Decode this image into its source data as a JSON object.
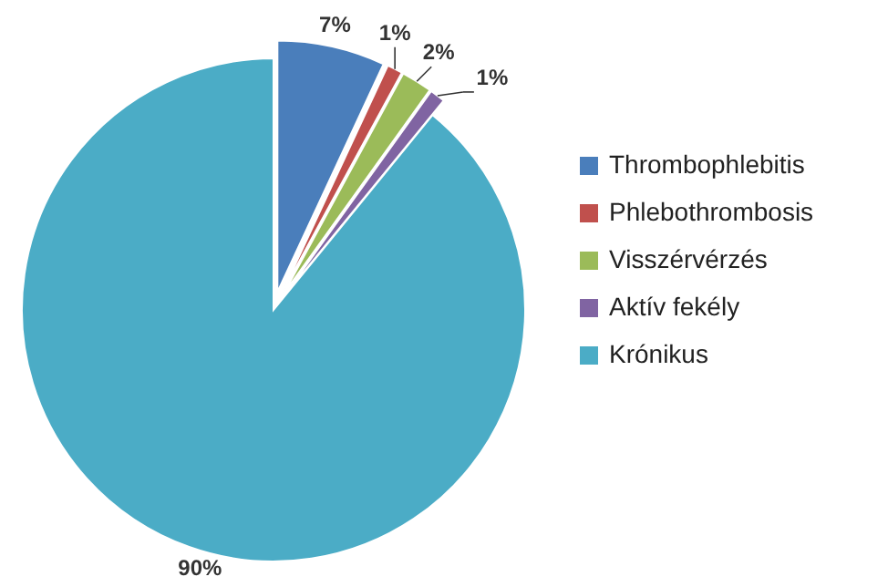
{
  "chart_data": {
    "type": "pie",
    "categories": [
      "Thrombophlebitis",
      "Phlebothrombosis",
      "Visszérvérzés",
      "Aktív fekély",
      "Krónikus"
    ],
    "values": [
      7,
      1,
      2,
      1,
      90
    ],
    "colors": [
      "#4a7ebb",
      "#c0504d",
      "#9bbb59",
      "#8064a2",
      "#4bacc6"
    ],
    "value_labels": [
      "7%",
      "1%",
      "2%",
      "1%",
      "90%"
    ],
    "legend": "right"
  }
}
